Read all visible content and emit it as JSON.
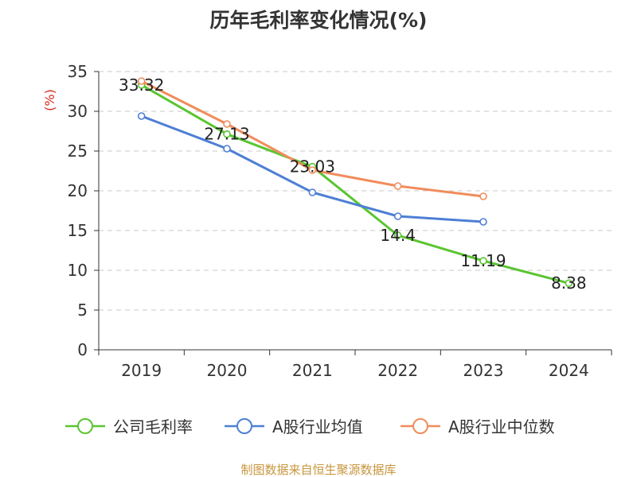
{
  "chart_data": {
    "type": "line",
    "title": "历年毛利率变化情况(%)",
    "ylabel": "(%)",
    "categories": [
      "2019",
      "2020",
      "2021",
      "2022",
      "2023",
      "2024"
    ],
    "ylim": [
      0,
      35
    ],
    "yticks": [
      0,
      5,
      10,
      15,
      20,
      25,
      30,
      35
    ],
    "grid": true,
    "legend_position": "bottom",
    "series": [
      {
        "name": "公司毛利率",
        "color": "#5ac531",
        "values": [
          33.32,
          27.13,
          23.03,
          14.4,
          11.19,
          8.38
        ],
        "labels": [
          "33.32",
          "27.13",
          "23.03",
          "14.4",
          "11.19",
          "8.38"
        ]
      },
      {
        "name": "A股行业均值",
        "color": "#4e7fd4",
        "values": [
          29.4,
          25.3,
          19.8,
          16.8,
          16.1,
          null
        ]
      },
      {
        "name": "A股行业中位数",
        "color": "#f18c5b",
        "values": [
          33.8,
          28.4,
          22.6,
          20.6,
          19.3,
          null
        ]
      }
    ],
    "ylabel_color": "#d9281c",
    "source": "制图数据来自恒生聚源数据库",
    "source_color": "#c8963e"
  }
}
